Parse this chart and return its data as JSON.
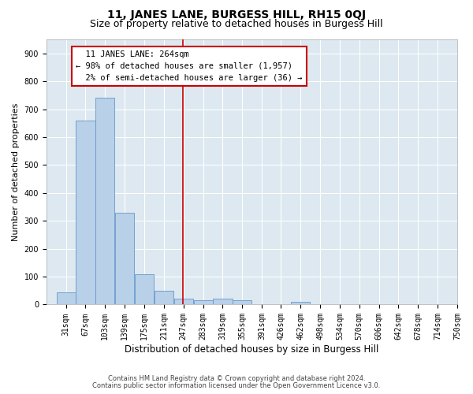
{
  "title": "11, JANES LANE, BURGESS HILL, RH15 0QJ",
  "subtitle": "Size of property relative to detached houses in Burgess Hill",
  "xlabel": "Distribution of detached houses by size in Burgess Hill",
  "ylabel": "Number of detached properties",
  "footnote1": "Contains HM Land Registry data © Crown copyright and database right 2024.",
  "footnote2": "Contains public sector information licensed under the Open Government Licence v3.0.",
  "bin_labels": [
    "31sqm",
    "67sqm",
    "103sqm",
    "139sqm",
    "175sqm",
    "211sqm",
    "247sqm",
    "283sqm",
    "319sqm",
    "355sqm",
    "391sqm",
    "426sqm",
    "462sqm",
    "498sqm",
    "534sqm",
    "570sqm",
    "606sqm",
    "642sqm",
    "678sqm",
    "714sqm",
    "750sqm"
  ],
  "bin_edges": [
    31,
    67,
    103,
    139,
    175,
    211,
    247,
    283,
    319,
    355,
    391,
    426,
    462,
    498,
    534,
    570,
    606,
    642,
    678,
    714,
    750
  ],
  "bar_heights": [
    45,
    660,
    740,
    330,
    110,
    50,
    20,
    15,
    20,
    15,
    0,
    0,
    10,
    0,
    0,
    0,
    0,
    0,
    0,
    0,
    0
  ],
  "bar_color": "#b8d0e8",
  "bar_edgecolor": "#6699cc",
  "property_size": 264,
  "vline_color": "#cc0000",
  "annotation_text": "  11 JANES LANE: 264sqm  \n← 98% of detached houses are smaller (1,957)\n  2% of semi-detached houses are larger (36) →",
  "annotation_box_color": "#ffffff",
  "annotation_box_edgecolor": "#cc0000",
  "ylim": [
    0,
    950
  ],
  "yticks": [
    0,
    100,
    200,
    300,
    400,
    500,
    600,
    700,
    800,
    900
  ],
  "bg_color": "#dde8f0",
  "grid_color": "#ffffff",
  "title_fontsize": 10,
  "subtitle_fontsize": 9,
  "xlabel_fontsize": 8.5,
  "ylabel_fontsize": 8,
  "tick_fontsize": 7,
  "annot_fontsize": 7.5,
  "footnote_fontsize": 6,
  "footnote_color": "#444444"
}
